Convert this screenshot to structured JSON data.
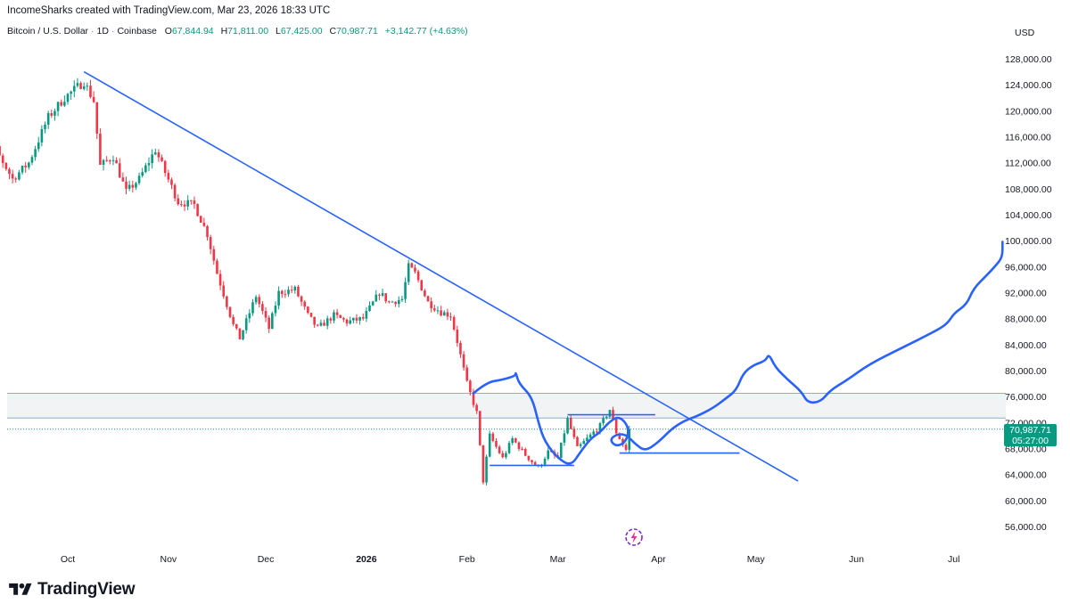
{
  "header": {
    "attribution": "IncomeSharks created with TradingView.com, Mar 23, 2026 18:33 UTC"
  },
  "symbol": {
    "name": "Bitcoin / U.S. Dollar",
    "interval": "1D",
    "exchange": "Coinbase",
    "open_label": "O",
    "open": "67,844.94",
    "high_label": "H",
    "high": "71,811.00",
    "low_label": "L",
    "low": "67,425.00",
    "close_label": "C",
    "close": "70,987.71",
    "change": "+3,142.77 (+4.63%)"
  },
  "currency": "USD",
  "last_price": {
    "value": "70,987.71",
    "countdown": "05:27:00"
  },
  "footer": {
    "brand": "TradingView"
  },
  "colors": {
    "up": "#089981",
    "down": "#f23645",
    "drawing": "#2962ff",
    "zone_border": "#8aa6ff",
    "zone_fill": "#f2f3f5"
  },
  "icons": {
    "logo": "tradingview-logo-icon",
    "badge": "lightning-badge-icon"
  },
  "chart_data": {
    "type": "candlestick",
    "title": "",
    "xlabel": "",
    "ylabel": "",
    "y_axis_side": "right",
    "ylim": [
      53000,
      131000
    ],
    "y_ticks": [
      56000,
      60000,
      64000,
      68000,
      72000,
      76000,
      80000,
      84000,
      88000,
      92000,
      96000,
      100000,
      104000,
      108000,
      112000,
      116000,
      120000,
      124000,
      128000
    ],
    "y_tick_labels": [
      "56,000.00",
      "60,000.00",
      "64,000.00",
      "68,000.00",
      "72,000.00",
      "76,000.00",
      "80,000.00",
      "84,000.00",
      "88,000.00",
      "92,000.00",
      "96,000.00",
      "100,000.00",
      "104,000.00",
      "108,000.00",
      "112,000.00",
      "116,000.00",
      "120,000.00",
      "124,000.00",
      "128,000.00"
    ],
    "x_ticks": [
      {
        "label": "Oct",
        "date": "2025-10-01",
        "bold": false
      },
      {
        "label": "Nov",
        "date": "2025-11-01",
        "bold": false
      },
      {
        "label": "Dec",
        "date": "2025-12-01",
        "bold": false
      },
      {
        "label": "2026",
        "date": "2026-01-01",
        "bold": true
      },
      {
        "label": "Feb",
        "date": "2026-02-01",
        "bold": false
      },
      {
        "label": "Mar",
        "date": "2026-03-01",
        "bold": false
      },
      {
        "label": "Apr",
        "date": "2026-04-01",
        "bold": false
      },
      {
        "label": "May",
        "date": "2026-05-01",
        "bold": false
      },
      {
        "label": "Jun",
        "date": "2026-06-01",
        "bold": false
      },
      {
        "label": "Jul",
        "date": "2026-07-01",
        "bold": false
      }
    ],
    "candle_waypoints": [
      {
        "date": "2025-09-01",
        "price": 115500
      },
      {
        "date": "2025-09-06",
        "price": 117000
      },
      {
        "date": "2025-09-10",
        "price": 113000
      },
      {
        "date": "2025-09-14",
        "price": 109500
      },
      {
        "date": "2025-09-19",
        "price": 112000
      },
      {
        "date": "2025-09-25",
        "price": 119000
      },
      {
        "date": "2025-09-30",
        "price": 122000
      },
      {
        "date": "2025-10-06",
        "price": 124500
      },
      {
        "date": "2025-10-09",
        "price": 121500
      },
      {
        "date": "2025-10-11",
        "price": 111500
      },
      {
        "date": "2025-10-15",
        "price": 113000
      },
      {
        "date": "2025-10-19",
        "price": 107500
      },
      {
        "date": "2025-10-23",
        "price": 109500
      },
      {
        "date": "2025-10-28",
        "price": 114000
      },
      {
        "date": "2025-10-31",
        "price": 110500
      },
      {
        "date": "2025-11-04",
        "price": 106000
      },
      {
        "date": "2025-11-09",
        "price": 105500
      },
      {
        "date": "2025-11-13",
        "price": 101000
      },
      {
        "date": "2025-11-16",
        "price": 95000
      },
      {
        "date": "2025-11-21",
        "price": 87000
      },
      {
        "date": "2025-11-23",
        "price": 85000
      },
      {
        "date": "2025-11-28",
        "price": 91500
      },
      {
        "date": "2025-12-02",
        "price": 86500
      },
      {
        "date": "2025-12-05",
        "price": 92000
      },
      {
        "date": "2025-12-10",
        "price": 92500
      },
      {
        "date": "2025-12-14",
        "price": 88500
      },
      {
        "date": "2025-12-17",
        "price": 86500
      },
      {
        "date": "2025-12-22",
        "price": 88500
      },
      {
        "date": "2025-12-26",
        "price": 87500
      },
      {
        "date": "2025-12-31",
        "price": 88000
      },
      {
        "date": "2026-01-05",
        "price": 92000
      },
      {
        "date": "2026-01-08",
        "price": 90500
      },
      {
        "date": "2026-01-12",
        "price": 91000
      },
      {
        "date": "2026-01-14",
        "price": 96000
      },
      {
        "date": "2026-01-16",
        "price": 95000
      },
      {
        "date": "2026-01-20",
        "price": 90500
      },
      {
        "date": "2026-01-24",
        "price": 89000
      },
      {
        "date": "2026-01-27",
        "price": 88500
      },
      {
        "date": "2026-01-29",
        "price": 84500
      },
      {
        "date": "2026-02-01",
        "price": 78000
      },
      {
        "date": "2026-02-04",
        "price": 73500
      },
      {
        "date": "2026-02-06",
        "price": 63000
      },
      {
        "date": "2026-02-08",
        "price": 70000
      },
      {
        "date": "2026-02-12",
        "price": 66500
      },
      {
        "date": "2026-02-15",
        "price": 69500
      },
      {
        "date": "2026-02-19",
        "price": 67000
      },
      {
        "date": "2026-02-23",
        "price": 65000
      },
      {
        "date": "2026-02-26",
        "price": 67500
      },
      {
        "date": "2026-03-01",
        "price": 66500
      },
      {
        "date": "2026-03-04",
        "price": 72500
      },
      {
        "date": "2026-03-07",
        "price": 68000
      },
      {
        "date": "2026-03-10",
        "price": 69500
      },
      {
        "date": "2026-03-14",
        "price": 71500
      },
      {
        "date": "2026-03-17",
        "price": 74000
      },
      {
        "date": "2026-03-19",
        "price": 70500
      },
      {
        "date": "2026-03-22",
        "price": 67800
      },
      {
        "date": "2026-03-23",
        "price": 70987.71
      }
    ],
    "drawings": {
      "trendline": {
        "from": {
          "date": "2025-10-06",
          "price": 126000
        },
        "to": {
          "date": "2026-05-14",
          "price": 63000
        }
      },
      "resistance_zone": {
        "low": 72700,
        "high": 76500
      },
      "range_high": {
        "from": "2026-03-04",
        "to": "2026-03-31",
        "price": 73200
      },
      "range_low_left": {
        "from": "2026-02-08",
        "to": "2026-03-06",
        "price": 65400
      },
      "range_low_right": {
        "from": "2026-03-20",
        "to": "2026-04-26",
        "price": 67300
      },
      "projection_path": [
        {
          "date": "2026-02-03",
          "price": 76500
        },
        {
          "date": "2026-02-07",
          "price": 78200
        },
        {
          "date": "2026-02-12",
          "price": 78600
        },
        {
          "date": "2026-02-16",
          "price": 79200
        },
        {
          "date": "2026-02-16",
          "price": 79800
        },
        {
          "date": "2026-02-17",
          "price": 78000
        },
        {
          "date": "2026-02-21",
          "price": 76000
        },
        {
          "date": "2026-02-23",
          "price": 72000
        },
        {
          "date": "2026-02-25",
          "price": 69000
        },
        {
          "date": "2026-03-01",
          "price": 66500
        },
        {
          "date": "2026-03-05",
          "price": 65300
        },
        {
          "date": "2026-03-08",
          "price": 67500
        },
        {
          "date": "2026-03-11",
          "price": 69500
        },
        {
          "date": "2026-03-14",
          "price": 70500
        },
        {
          "date": "2026-03-17",
          "price": 72200
        },
        {
          "date": "2026-03-20",
          "price": 73000
        },
        {
          "date": "2026-03-23",
          "price": 71200
        },
        {
          "date": "2026-03-22",
          "price": 69000
        },
        {
          "date": "2026-03-19",
          "price": 68300
        },
        {
          "date": "2026-03-17",
          "price": 69300
        },
        {
          "date": "2026-03-19",
          "price": 70200
        },
        {
          "date": "2026-03-22",
          "price": 70200
        },
        {
          "date": "2026-03-25",
          "price": 68600
        },
        {
          "date": "2026-03-28",
          "price": 67600
        },
        {
          "date": "2026-04-01",
          "price": 69000
        },
        {
          "date": "2026-04-05",
          "price": 71000
        },
        {
          "date": "2026-04-09",
          "price": 72300
        },
        {
          "date": "2026-04-13",
          "price": 73000
        },
        {
          "date": "2026-04-18",
          "price": 74300
        },
        {
          "date": "2026-04-22",
          "price": 75800
        },
        {
          "date": "2026-04-25",
          "price": 77000
        },
        {
          "date": "2026-04-27",
          "price": 79500
        },
        {
          "date": "2026-04-30",
          "price": 80800
        },
        {
          "date": "2026-05-04",
          "price": 81500
        },
        {
          "date": "2026-05-05",
          "price": 82600
        },
        {
          "date": "2026-05-07",
          "price": 80500
        },
        {
          "date": "2026-05-11",
          "price": 78500
        },
        {
          "date": "2026-05-15",
          "price": 76800
        },
        {
          "date": "2026-05-17",
          "price": 75000
        },
        {
          "date": "2026-05-21",
          "price": 75200
        },
        {
          "date": "2026-05-24",
          "price": 77000
        },
        {
          "date": "2026-05-29",
          "price": 78500
        },
        {
          "date": "2026-06-05",
          "price": 81000
        },
        {
          "date": "2026-06-15",
          "price": 83500
        },
        {
          "date": "2026-06-25",
          "price": 86000
        },
        {
          "date": "2026-06-29",
          "price": 87200
        },
        {
          "date": "2026-07-01",
          "price": 88800
        },
        {
          "date": "2026-07-05",
          "price": 90200
        },
        {
          "date": "2026-07-07",
          "price": 92600
        },
        {
          "date": "2026-07-11",
          "price": 94600
        },
        {
          "date": "2026-07-14",
          "price": 96200
        },
        {
          "date": "2026-07-16",
          "price": 97500
        },
        {
          "date": "2026-07-16",
          "price": 99800
        }
      ]
    }
  }
}
